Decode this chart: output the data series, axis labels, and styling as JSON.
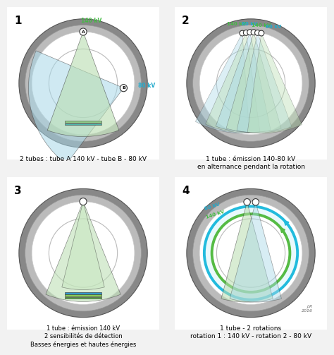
{
  "light_green": "#b8ddb0",
  "light_blue": "#a8d8e8",
  "mid_green": "#90cc88",
  "teal": "#50b8b0",
  "cyan_blue": "#30c0d8",
  "dark_green_ring": "#68b860",
  "panel1_caption": "2 tubes : tube A 140 kV - tube B - 80 kV",
  "panel2_caption": "1 tube : émission 140-80 kV\nen alternance pendant la rotation",
  "panel3_caption": "1 tube : émission 140 kV\n2 sensibilités de détection\nBasses énergies et hautes énergies",
  "panel4_caption": "1 tube - 2 rotations\nrotation 1 : 140 kV - rotation 2 - 80 kV",
  "label_140kV_color": "#44bb44",
  "label_80kV_color": "#22aacc",
  "font_size_caption": 6.5,
  "font_size_number": 11,
  "ring_outer_color": "#888888",
  "ring_dark": "#777777",
  "ring_mid": "#aaaaaa",
  "ring_light": "#dddddd",
  "panel_edge": "#aaaaaa"
}
